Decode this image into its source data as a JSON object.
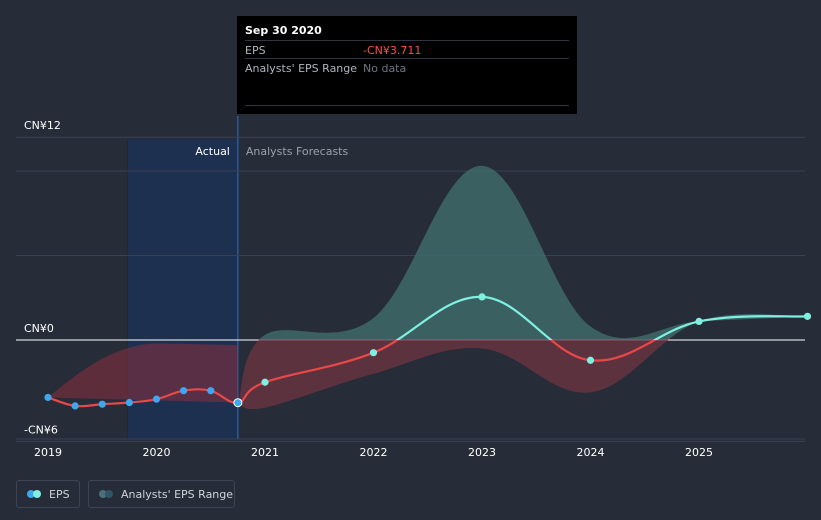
{
  "tooltip": {
    "date": "Sep 30 2020",
    "rows": [
      {
        "key": "EPS",
        "value": "-CN¥3.711",
        "color": "#ff4d4d"
      },
      {
        "key": "Analysts' EPS Range",
        "value": "No data",
        "color": "#6f7580"
      }
    ]
  },
  "regions": {
    "actual": "Actual",
    "forecast": "Analysts Forecasts"
  },
  "legend": {
    "eps": "EPS",
    "range": "Analysts' EPS Range"
  },
  "colors": {
    "background": "#262c38",
    "eps_line": "#e84848",
    "forecast_line": "#7ff0e0",
    "actual_point": "#3ea7f0",
    "positive_range": "#3f6a6a",
    "negative_range": "#6a3540",
    "actual_highlight": "#1e3a66"
  },
  "chart_data": {
    "type": "line",
    "title": "",
    "xlabel": "",
    "ylabel": "",
    "ylim": [
      -6,
      12
    ],
    "xlim": [
      2019,
      2026
    ],
    "y_ticks": [
      {
        "value": 12,
        "label": "CN¥12"
      },
      {
        "value": 0,
        "label": "CN¥0"
      },
      {
        "value": -6,
        "label": "-CN¥6"
      }
    ],
    "x_ticks": [
      2019,
      2020,
      2021,
      2022,
      2023,
      2024,
      2025
    ],
    "actual_end": 2020.75,
    "series": [
      {
        "name": "EPS",
        "x": [
          2019.0,
          2019.25,
          2019.5,
          2019.75,
          2020.0,
          2020.25,
          2020.5,
          2020.75,
          2021.0,
          2022.0,
          2023.0,
          2024.0,
          2025.0,
          2026.0
        ],
        "values": [
          -3.4,
          -3.9,
          -3.8,
          -3.7,
          -3.5,
          -3.0,
          -3.0,
          -3.711,
          -2.5,
          -0.75,
          2.55,
          -1.2,
          1.1,
          1.4
        ]
      }
    ],
    "range": {
      "name": "Analysts' EPS Range",
      "x": [
        2020.75,
        2021.0,
        2022.0,
        2023.0,
        2024.0,
        2025.0,
        2026.0
      ],
      "high": [
        -3.711,
        0.3,
        1.3,
        10.3,
        0.8,
        1.1,
        1.4
      ],
      "low": [
        -3.711,
        -4.0,
        -2.0,
        -0.5,
        -3.1,
        1.1,
        1.4
      ]
    }
  }
}
